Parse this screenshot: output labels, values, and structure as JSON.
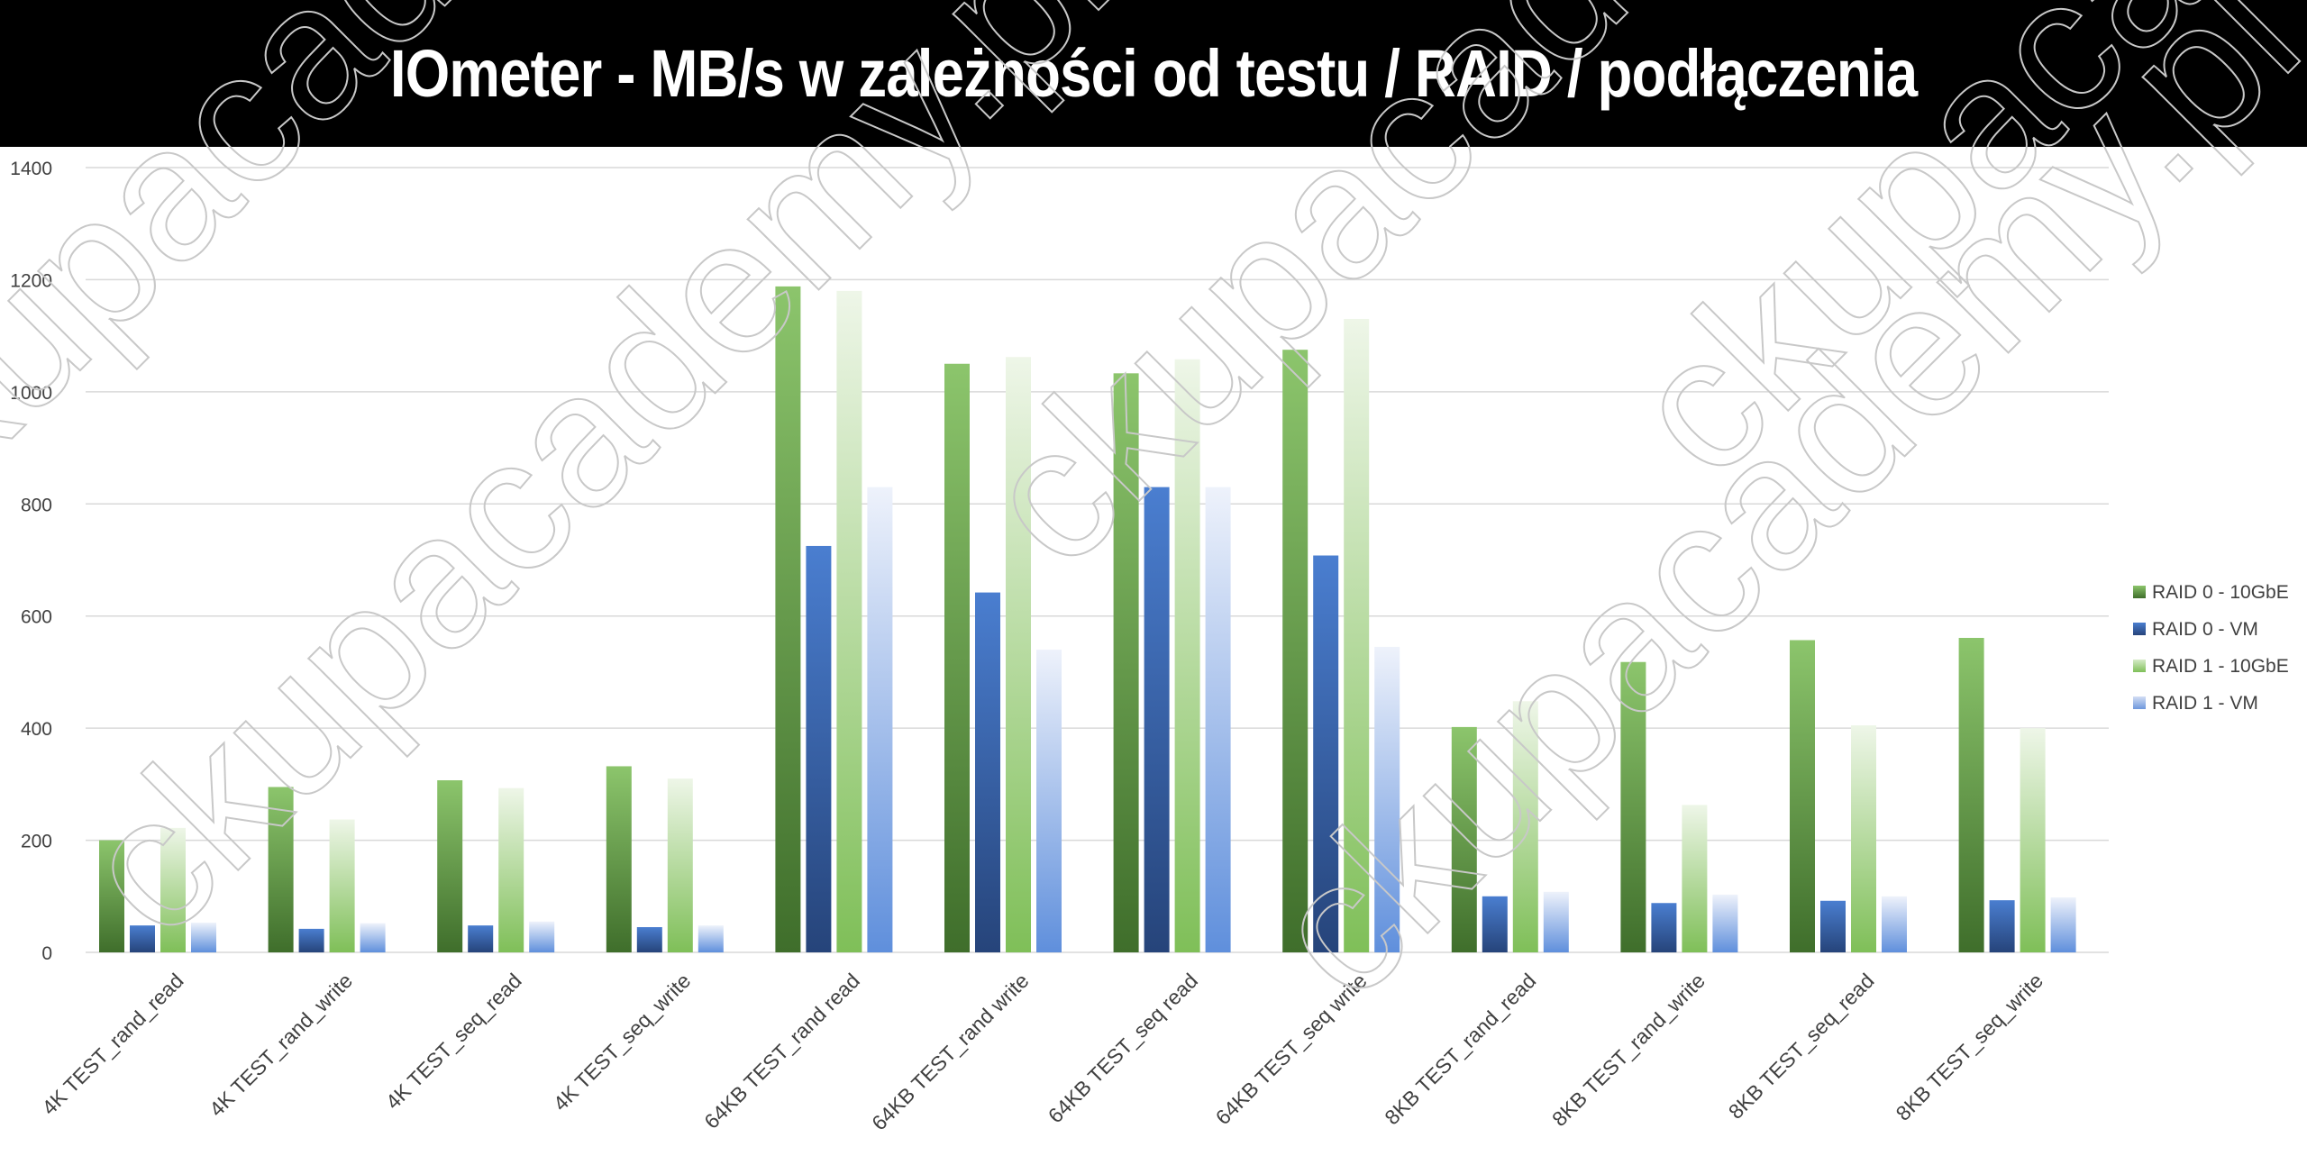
{
  "title": "IOmeter - MB/s w zależności od testu / RAID / podłączenia",
  "watermark_text": "ckupacademy.pl",
  "colors": {
    "raid0_10gbe": "#5b9a3e",
    "raid0_vm": "#3a66b0",
    "raid1_10gbe": "#a9d18e",
    "raid1_vm": "#a9c2eb",
    "grid": "#d9d9d9",
    "axis_text": "#404040"
  },
  "chart_data": {
    "type": "bar",
    "title": "IOmeter - MB/s w zależności od testu / RAID / podłączenia",
    "xlabel": "",
    "ylabel": "",
    "ylim": [
      0,
      1400
    ],
    "yticks": [
      0,
      200,
      400,
      600,
      800,
      1000,
      1200,
      1400
    ],
    "grid": true,
    "legend_position": "right",
    "categories": [
      "4K TEST_rand_read",
      "4K TEST_rand_write",
      "4K TEST_seq_read",
      "4K TEST_seq_write",
      "64KB TEST_rand read",
      "64KB TEST_rand write",
      "64KB TEST_seq read",
      "64KB TEST_seq write",
      "8KB TEST_rand_read",
      "8KB TEST_rand_write",
      "8KB TEST_seq_read",
      "8KB TEST_seq_write"
    ],
    "series": [
      {
        "name": "RAID 0 - 10GbE",
        "values": [
          200,
          295,
          307,
          332,
          1188,
          1050,
          1033,
          1075,
          402,
          518,
          557,
          561
        ]
      },
      {
        "name": "RAID 0 - VM",
        "values": [
          48,
          42,
          48,
          45,
          725,
          642,
          830,
          708,
          100,
          88,
          92,
          93
        ]
      },
      {
        "name": "RAID 1 - 10GbE",
        "values": [
          222,
          237,
          293,
          310,
          1180,
          1062,
          1058,
          1130,
          448,
          263,
          405,
          400
        ]
      },
      {
        "name": "RAID 1 - VM",
        "values": [
          53,
          52,
          55,
          48,
          830,
          540,
          830,
          545,
          108,
          103,
          100,
          98
        ]
      }
    ]
  }
}
